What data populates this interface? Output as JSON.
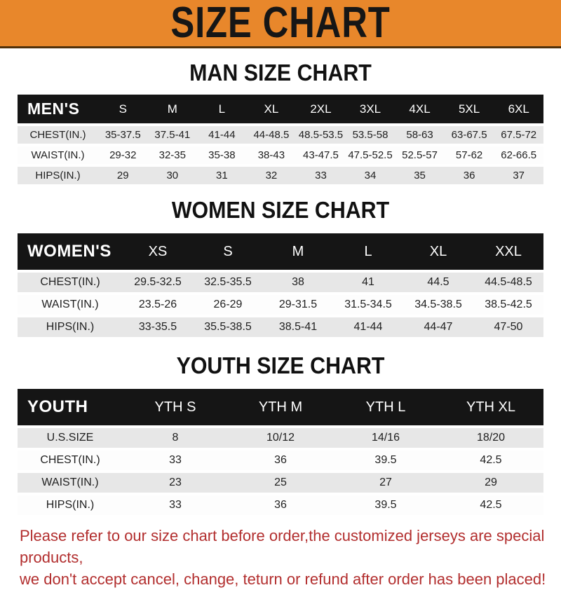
{
  "banner": {
    "title": "SIZE CHART"
  },
  "sections": {
    "men": {
      "heading": "MAN SIZE CHART"
    },
    "women": {
      "heading": "WOMEN SIZE CHART"
    },
    "youth": {
      "heading": "YOUTH SIZE CHART"
    }
  },
  "tables": {
    "men": {
      "header_label": "MEN'S",
      "columns": [
        "S",
        "M",
        "L",
        "XL",
        "2XL",
        "3XL",
        "4XL",
        "5XL",
        "6XL"
      ],
      "rows": [
        {
          "label": "CHEST(IN.)",
          "values": [
            "35-37.5",
            "37.5-41",
            "41-44",
            "44-48.5",
            "48.5-53.5",
            "53.5-58",
            "58-63",
            "63-67.5",
            "67.5-72"
          ]
        },
        {
          "label": "WAIST(IN.)",
          "values": [
            "29-32",
            "32-35",
            "35-38",
            "38-43",
            "43-47.5",
            "47.5-52.5",
            "52.5-57",
            "57-62",
            "62-66.5"
          ]
        },
        {
          "label": "HIPS(IN.)",
          "values": [
            "29",
            "30",
            "31",
            "32",
            "33",
            "34",
            "35",
            "36",
            "37"
          ]
        }
      ]
    },
    "women": {
      "header_label": "WOMEN'S",
      "columns": [
        "XS",
        "S",
        "M",
        "L",
        "XL",
        "XXL"
      ],
      "rows": [
        {
          "label": "CHEST(IN.)",
          "values": [
            "29.5-32.5",
            "32.5-35.5",
            "38",
            "41",
            "44.5",
            "44.5-48.5"
          ]
        },
        {
          "label": "WAIST(IN.)",
          "values": [
            "23.5-26",
            "26-29",
            "29-31.5",
            "31.5-34.5",
            "34.5-38.5",
            "38.5-42.5"
          ]
        },
        {
          "label": "HIPS(IN.)",
          "values": [
            "33-35.5",
            "35.5-38.5",
            "38.5-41",
            "41-44",
            "44-47",
            "47-50"
          ]
        }
      ]
    },
    "youth": {
      "header_label": "YOUTH",
      "columns": [
        "YTH S",
        "YTH M",
        "YTH L",
        "YTH XL"
      ],
      "rows": [
        {
          "label": "U.S.SIZE",
          "values": [
            "8",
            "10/12",
            "14/16",
            "18/20"
          ]
        },
        {
          "label": "CHEST(IN.)",
          "values": [
            "33",
            "36",
            "39.5",
            "42.5"
          ]
        },
        {
          "label": "WAIST(IN.)",
          "values": [
            "23",
            "25",
            "27",
            "29"
          ]
        },
        {
          "label": "HIPS(IN.)",
          "values": [
            "33",
            "36",
            "39.5",
            "42.5"
          ]
        }
      ]
    }
  },
  "footer": {
    "line1": "Please refer to our size chart before order,the customized jerseys are special products,",
    "line2": "we don't accept cancel, change, teturn or refund after order has been placed!"
  },
  "colors": {
    "banner": "#e8872b",
    "banner-border": "#50300a",
    "bar": "#151515",
    "shade": "#e7e7e7",
    "heading": "#111111",
    "footer": "#b22e2e"
  }
}
